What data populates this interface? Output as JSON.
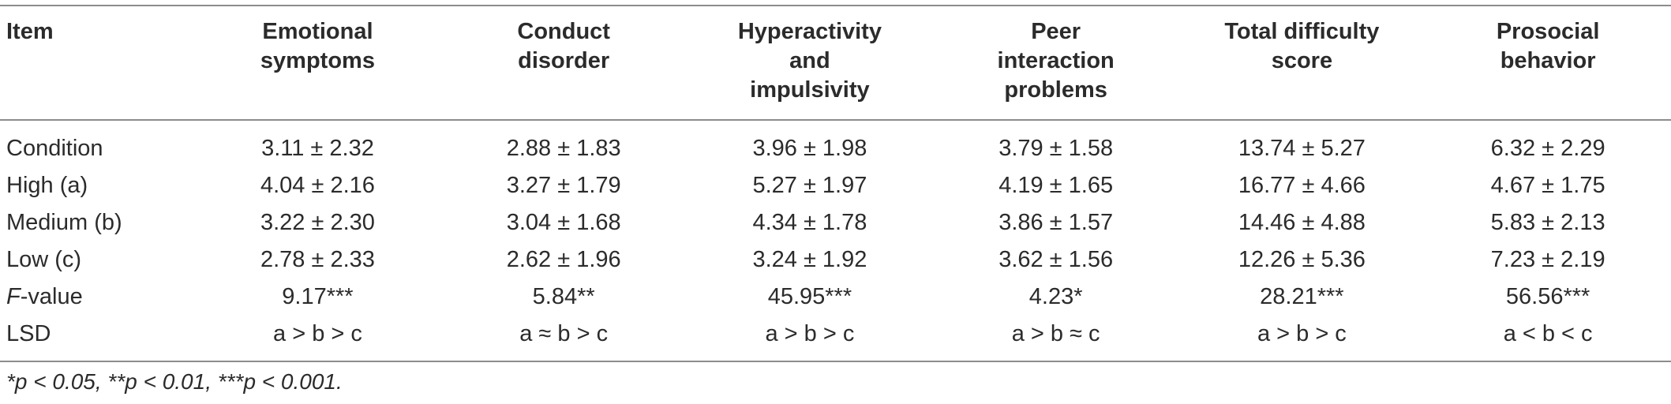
{
  "table": {
    "headers": {
      "item": "Item",
      "emotional": [
        "Emotional",
        "symptoms"
      ],
      "conduct": [
        "Conduct",
        "disorder"
      ],
      "hyper": [
        "Hyperactivity",
        "and",
        "impulsivity"
      ],
      "peer": [
        "Peer",
        "interaction",
        "problems"
      ],
      "total": [
        "Total difficulty",
        "score"
      ],
      "prosocial": [
        "Prosocial",
        "behavior"
      ]
    },
    "rows": [
      {
        "item": "Condition",
        "values": [
          "3.11 ± 2.32",
          "2.88 ± 1.83",
          "3.96 ± 1.98",
          "3.79 ± 1.58",
          "13.74 ± 5.27",
          "6.32 ± 2.29"
        ]
      },
      {
        "item": "High (a)",
        "values": [
          "4.04 ± 2.16",
          "3.27 ± 1.79",
          "5.27 ± 1.97",
          "4.19 ± 1.65",
          "16.77 ± 4.66",
          "4.67 ± 1.75"
        ]
      },
      {
        "item": "Medium (b)",
        "values": [
          "3.22 ± 2.30",
          "3.04 ± 1.68",
          "4.34 ± 1.78",
          "3.86 ± 1.57",
          "14.46 ± 4.88",
          "5.83 ± 2.13"
        ]
      },
      {
        "item": "Low (c)",
        "values": [
          "2.78 ± 2.33",
          "2.62 ± 1.96",
          "3.24 ± 1.92",
          "3.62 ± 1.56",
          "12.26 ± 5.36",
          "7.23 ± 2.19"
        ]
      }
    ],
    "f_row": {
      "item_italic": "F",
      "item_rest": "-value",
      "values": [
        "9.17***",
        "5.84**",
        "45.95***",
        "4.23*",
        "28.21***",
        "56.56***"
      ]
    },
    "lsd_row": {
      "item": "LSD",
      "values": [
        "a > b > c",
        "a ≈ b > c",
        "a > b > c",
        "a > b ≈ c",
        "a > b > c",
        "a < b < c"
      ]
    }
  },
  "footnote": "*p < 0.05, **p < 0.01, ***p < 0.001."
}
